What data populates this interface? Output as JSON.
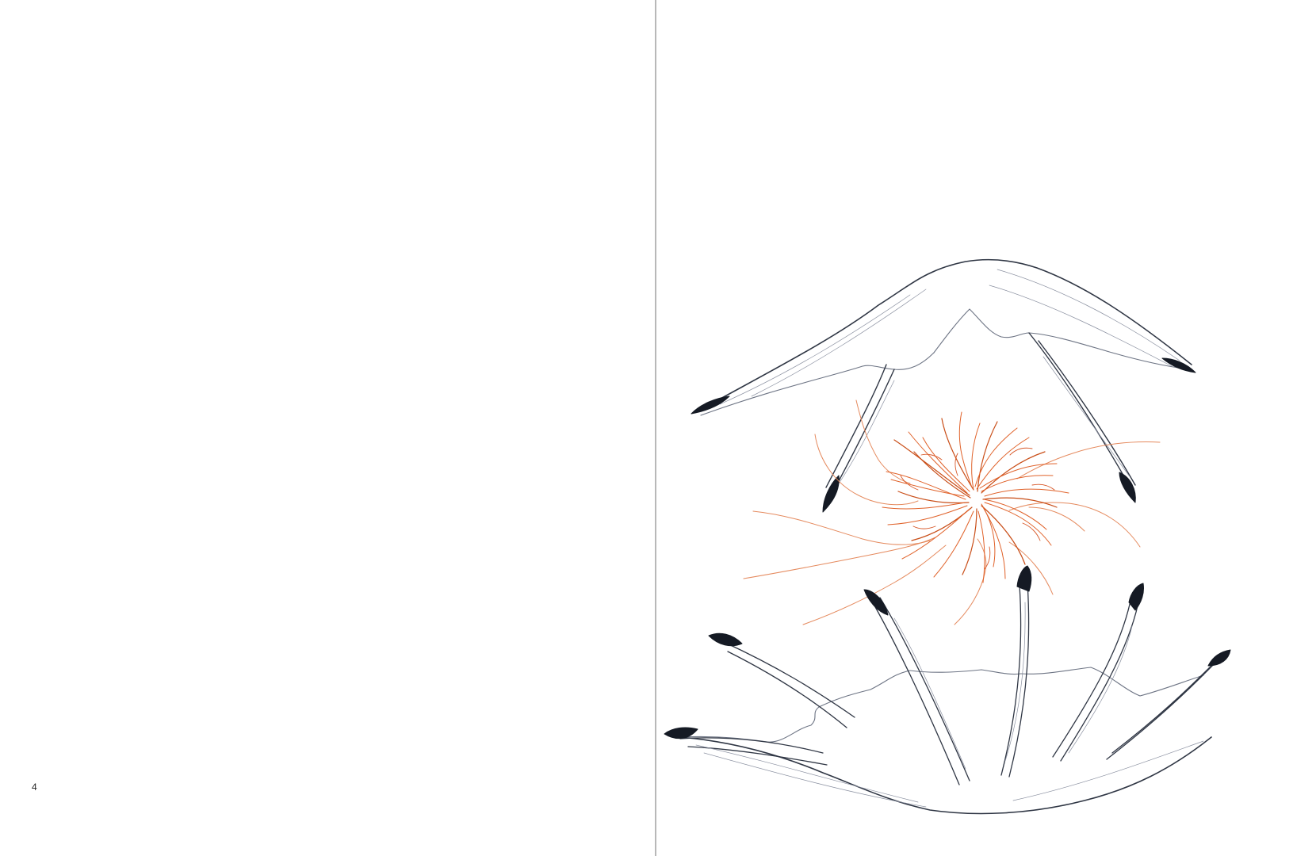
{
  "spread": {
    "left_page": {
      "folio": "4"
    },
    "right_page": {
      "illustration": "pencil-drawing-claws-with-orange-threads",
      "colors": {
        "outline": "#2f3644",
        "shading": "#8a90a0",
        "tips": "#151a24",
        "threads": "#e0622a",
        "threads_dark": "#c94e18"
      }
    },
    "gutter_color": "#b8b8b8"
  }
}
